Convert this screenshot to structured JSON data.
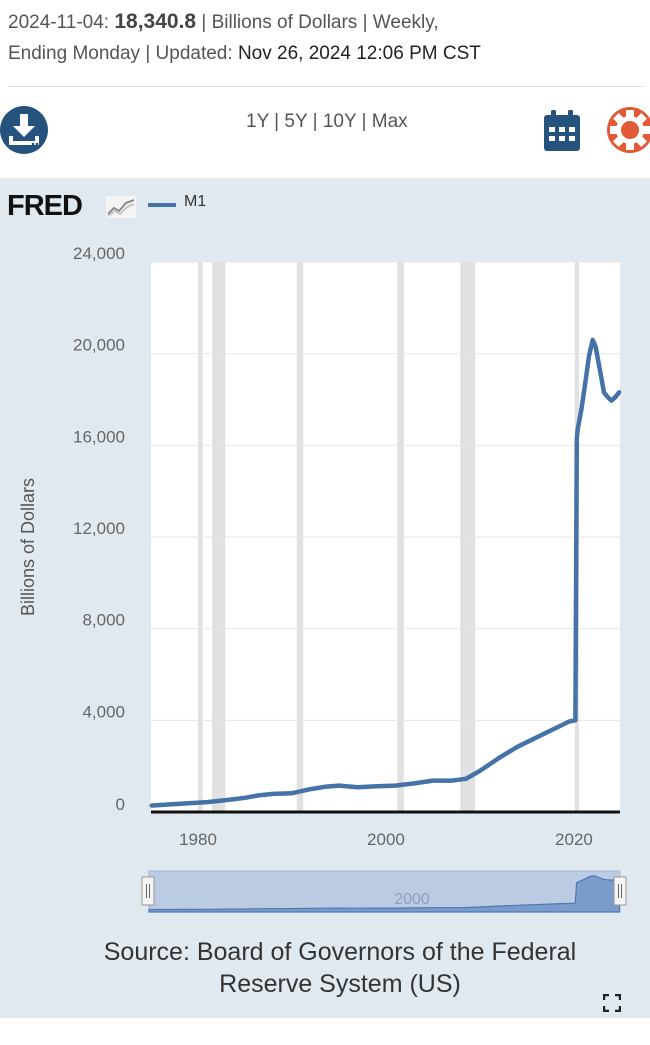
{
  "header": {
    "date": "2024-11-04:",
    "value": "18,340.8",
    "meta": "| Billions of Dollars | Weekly,",
    "meta2": "Ending Monday | Updated:",
    "updated": "Nov 26, 2024 12:06 PM CST"
  },
  "toolbar": {
    "ranges": [
      "1Y",
      "5Y",
      "10Y",
      "Max"
    ],
    "separator": " | ",
    "download_icon": "download-icon",
    "calendar_icon": "calendar-icon",
    "settings_icon": "gear-icon"
  },
  "logo": {
    "text": "FRED"
  },
  "source": {
    "line1": "Source: Board of Governors of the Federal",
    "line2": "Reserve System (US)"
  },
  "colors": {
    "series": "#4572a7",
    "recession": "#e1e1e1",
    "panel": "#e1e9f0",
    "gear": "#e05a35",
    "icon_blue": "#26537e"
  },
  "chart_data": {
    "type": "line",
    "title": "",
    "xlabel": "",
    "ylabel": "Billions of Dollars",
    "xlim": [
      1975.0,
      2024.9
    ],
    "ylim": [
      0,
      24000
    ],
    "x_ticks": [
      "1980",
      "2000",
      "2020"
    ],
    "y_ticks": [
      "0",
      "4,000",
      "8,000",
      "12,000",
      "16,000",
      "20,000",
      "24,000"
    ],
    "grid": true,
    "legend": "top-left",
    "recessions": [
      [
        1980.0,
        1980.5
      ],
      [
        1981.5,
        1982.9
      ],
      [
        1990.5,
        1991.2
      ],
      [
        2001.2,
        2001.9
      ],
      [
        2007.9,
        2009.5
      ],
      [
        2020.1,
        2020.3
      ]
    ],
    "navigator_label": "2000",
    "series": [
      {
        "name": "M1",
        "x": [
          1975.0,
          1977,
          1979,
          1981,
          1983,
          1985,
          1986.5,
          1987.2,
          1988,
          1990,
          1992,
          1993.5,
          1995,
          1997,
          1999,
          2001,
          2003,
          2005,
          2007,
          2008.5,
          2010,
          2012,
          2014,
          2016,
          2018,
          2019.5,
          2020.15,
          2020.3,
          2020.4,
          2020.8,
          2021.2,
          2021.6,
          2022.0,
          2022.3,
          2022.8,
          2023.2,
          2023.6,
          2024.0,
          2024.4,
          2024.85
        ],
        "y": [
          280,
          330,
          380,
          430,
          520,
          620,
          730,
          760,
          790,
          820,
          1000,
          1100,
          1150,
          1080,
          1120,
          1150,
          1250,
          1370,
          1370,
          1450,
          1800,
          2350,
          2850,
          3250,
          3650,
          3950,
          4000,
          16300,
          16700,
          17600,
          18700,
          19900,
          20600,
          20300,
          19200,
          18300,
          18100,
          17950,
          18100,
          18340.8
        ]
      }
    ]
  }
}
